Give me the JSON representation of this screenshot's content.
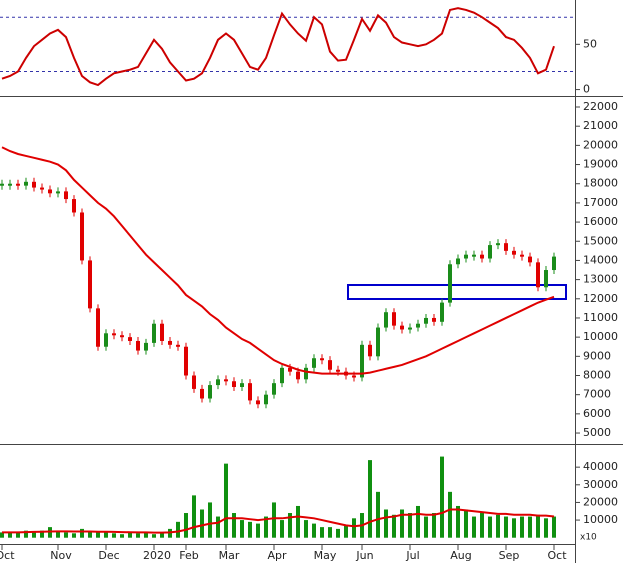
{
  "chart_data": [
    {
      "type": "line",
      "name": "rsi",
      "color": "#cc0000",
      "ylim": [
        -6,
        99
      ],
      "yticks": [
        0,
        50
      ],
      "levels": [
        20,
        80
      ],
      "values": [
        12,
        15,
        20,
        35,
        48,
        55,
        62,
        66,
        58,
        35,
        15,
        8,
        5,
        12,
        18,
        20,
        22,
        25,
        40,
        55,
        45,
        30,
        20,
        10,
        12,
        18,
        35,
        55,
        62,
        55,
        40,
        25,
        22,
        35,
        60,
        84,
        72,
        62,
        54,
        80,
        72,
        42,
        32,
        33,
        55,
        78,
        65,
        82,
        74,
        58,
        52,
        50,
        48,
        50,
        55,
        62,
        88,
        90,
        88,
        85,
        80,
        74,
        68,
        58,
        55,
        46,
        35,
        18,
        22,
        48
      ]
    },
    {
      "type": "candlestick",
      "name": "price",
      "up_color": "#1a8c1a",
      "down_color": "#e00000",
      "ma_color": "#e00000",
      "ylim": [
        4480,
        22470
      ],
      "yticks": [
        5000,
        6000,
        7000,
        8000,
        9000,
        10000,
        11000,
        12000,
        13000,
        14000,
        15000,
        16000,
        17000,
        18000,
        19000,
        20000,
        21000,
        22000
      ],
      "close": [
        18000,
        18000,
        17900,
        18100,
        17800,
        17700,
        17500,
        17600,
        17200,
        16500,
        14000,
        11500,
        9500,
        10200,
        10100,
        10000,
        9800,
        9300,
        9700,
        10700,
        9800,
        9600,
        9500,
        8000,
        7300,
        6800,
        7500,
        7800,
        7700,
        7400,
        7600,
        6700,
        6500,
        7000,
        7600,
        8400,
        8200,
        7800,
        8400,
        8900,
        8800,
        8300,
        8200,
        8000,
        7900,
        9600,
        9000,
        10500,
        11300,
        10600,
        10400,
        10500,
        10700,
        11000,
        10800,
        11800,
        13800,
        14100,
        14300,
        14300,
        14100,
        14800,
        14900,
        14500,
        14300,
        14200,
        13900,
        12600,
        13500,
        14200
      ],
      "ma": [
        19900,
        19700,
        19550,
        19450,
        19350,
        19250,
        19150,
        19000,
        18700,
        18200,
        17800,
        17400,
        17000,
        16700,
        16300,
        15800,
        15300,
        14800,
        14300,
        13900,
        13500,
        13100,
        12700,
        12200,
        11900,
        11600,
        11200,
        10900,
        10500,
        10200,
        9900,
        9700,
        9400,
        9100,
        8800,
        8600,
        8450,
        8300,
        8200,
        8150,
        8100,
        8100,
        8100,
        8100,
        8100,
        8100,
        8150,
        8250,
        8350,
        8450,
        8550,
        8700,
        8850,
        9000,
        9200,
        9400,
        9600,
        9800,
        10000,
        10200,
        10400,
        10600,
        10800,
        11000,
        11200,
        11400,
        11600,
        11800,
        11950,
        12100
      ]
    },
    {
      "type": "bar",
      "name": "volume",
      "color": "#109010",
      "ma_color": "#e00000",
      "ylim": [
        -3000,
        52000
      ],
      "yticks": [
        10000,
        20000,
        30000,
        40000
      ],
      "unit_label": "x10",
      "categories": [
        "Oct",
        null,
        null,
        null,
        null,
        null,
        null,
        "Nov",
        null,
        null,
        null,
        null,
        null,
        "Dec",
        null,
        null,
        null,
        null,
        null,
        "2020",
        null,
        null,
        null,
        "Feb",
        null,
        null,
        null,
        null,
        "Mar",
        null,
        null,
        null,
        null,
        null,
        "Apr",
        null,
        null,
        null,
        null,
        null,
        "May",
        null,
        null,
        null,
        null,
        "Jun",
        null,
        null,
        null,
        null,
        null,
        "Jul",
        null,
        null,
        null,
        null,
        null,
        "Aug",
        null,
        null,
        null,
        null,
        null,
        "Sep",
        null,
        null,
        null,
        null,
        null,
        "Oct"
      ],
      "values": [
        3000,
        3500,
        3000,
        4000,
        3500,
        4000,
        6000,
        4000,
        3000,
        2500,
        5000,
        3000,
        3500,
        3000,
        2500,
        2000,
        3000,
        2500,
        3500,
        2000,
        3000,
        5000,
        9000,
        14000,
        24000,
        16000,
        20000,
        12000,
        42000,
        14000,
        10000,
        9000,
        8000,
        12000,
        20000,
        10000,
        14000,
        18000,
        10000,
        8000,
        6000,
        6000,
        5000,
        7000,
        11000,
        14000,
        44000,
        26000,
        16000,
        13000,
        16000,
        14000,
        18000,
        12000,
        14000,
        46000,
        26000,
        18000,
        16000,
        12000,
        14000,
        12000,
        13000,
        12000,
        11000,
        12000,
        12000,
        13000,
        11000,
        12000
      ],
      "ma": [
        3000,
        3000,
        3000,
        3200,
        3300,
        3400,
        3500,
        3600,
        3600,
        3500,
        3500,
        3500,
        3400,
        3400,
        3300,
        3200,
        3100,
        3000,
        3000,
        2900,
        2900,
        3000,
        3500,
        4500,
        6000,
        7000,
        8000,
        8500,
        11000,
        11000,
        11000,
        10500,
        10000,
        10500,
        11000,
        11000,
        11500,
        12000,
        11500,
        11000,
        10000,
        9000,
        8000,
        7000,
        6500,
        7000,
        9000,
        10500,
        11500,
        12000,
        13000,
        13000,
        13500,
        13000,
        13000,
        14000,
        16000,
        16000,
        15500,
        15000,
        14500,
        14000,
        13500,
        13500,
        13000,
        13000,
        13000,
        12500,
        12500,
        12000
      ]
    }
  ]
}
